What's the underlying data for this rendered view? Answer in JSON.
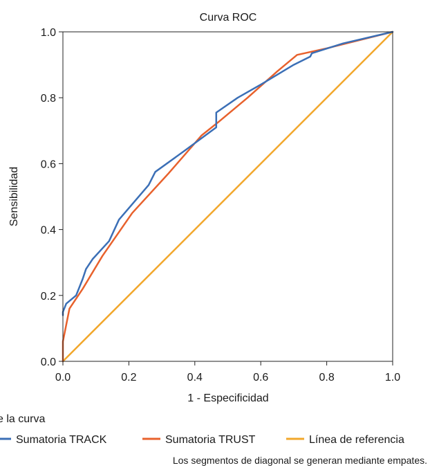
{
  "chart_data": {
    "type": "line",
    "title": "Curva ROC",
    "xlabel": "1 - Especificidad",
    "ylabel": "Sensibilidad",
    "xlim": [
      0,
      1
    ],
    "ylim": [
      0,
      1
    ],
    "xticks": [
      "0.0",
      "0.2",
      "0.4",
      "0.6",
      "0.8",
      "1.0"
    ],
    "yticks": [
      "0.0",
      "0.2",
      "0.4",
      "0.6",
      "0.8",
      "1.0"
    ],
    "grid": false,
    "legend_title": "Origen de la curva",
    "legend_position": "bottom",
    "series": [
      {
        "name": "Sumatoria TRACK",
        "color": "#3b6fb6",
        "x": [
          0.0,
          0.0,
          0.01,
          0.04,
          0.06,
          0.07,
          0.09,
          0.14,
          0.17,
          0.26,
          0.28,
          0.37,
          0.465,
          0.465,
          0.53,
          0.6,
          0.7,
          0.75,
          0.755,
          0.85,
          1.0
        ],
        "y": [
          0.14,
          0.15,
          0.175,
          0.2,
          0.25,
          0.28,
          0.31,
          0.365,
          0.43,
          0.535,
          0.575,
          0.64,
          0.71,
          0.755,
          0.8,
          0.84,
          0.9,
          0.925,
          0.935,
          0.965,
          1.0
        ]
      },
      {
        "name": "Sumatoria TRUST",
        "color": "#e8612c",
        "x": [
          0.0,
          0.0,
          0.02,
          0.06,
          0.12,
          0.21,
          0.32,
          0.42,
          0.47,
          0.56,
          0.65,
          0.71,
          0.8,
          0.9,
          1.0
        ],
        "y": [
          0.0,
          0.06,
          0.16,
          0.22,
          0.32,
          0.45,
          0.57,
          0.685,
          0.725,
          0.8,
          0.88,
          0.93,
          0.95,
          0.975,
          1.0
        ]
      },
      {
        "name": "Línea de referencia",
        "color": "#f2a72b",
        "x": [
          0.0,
          1.0
        ],
        "y": [
          0.0,
          1.0
        ]
      }
    ],
    "footnote": "Los segmentos de diagonal se generan mediante empates."
  }
}
